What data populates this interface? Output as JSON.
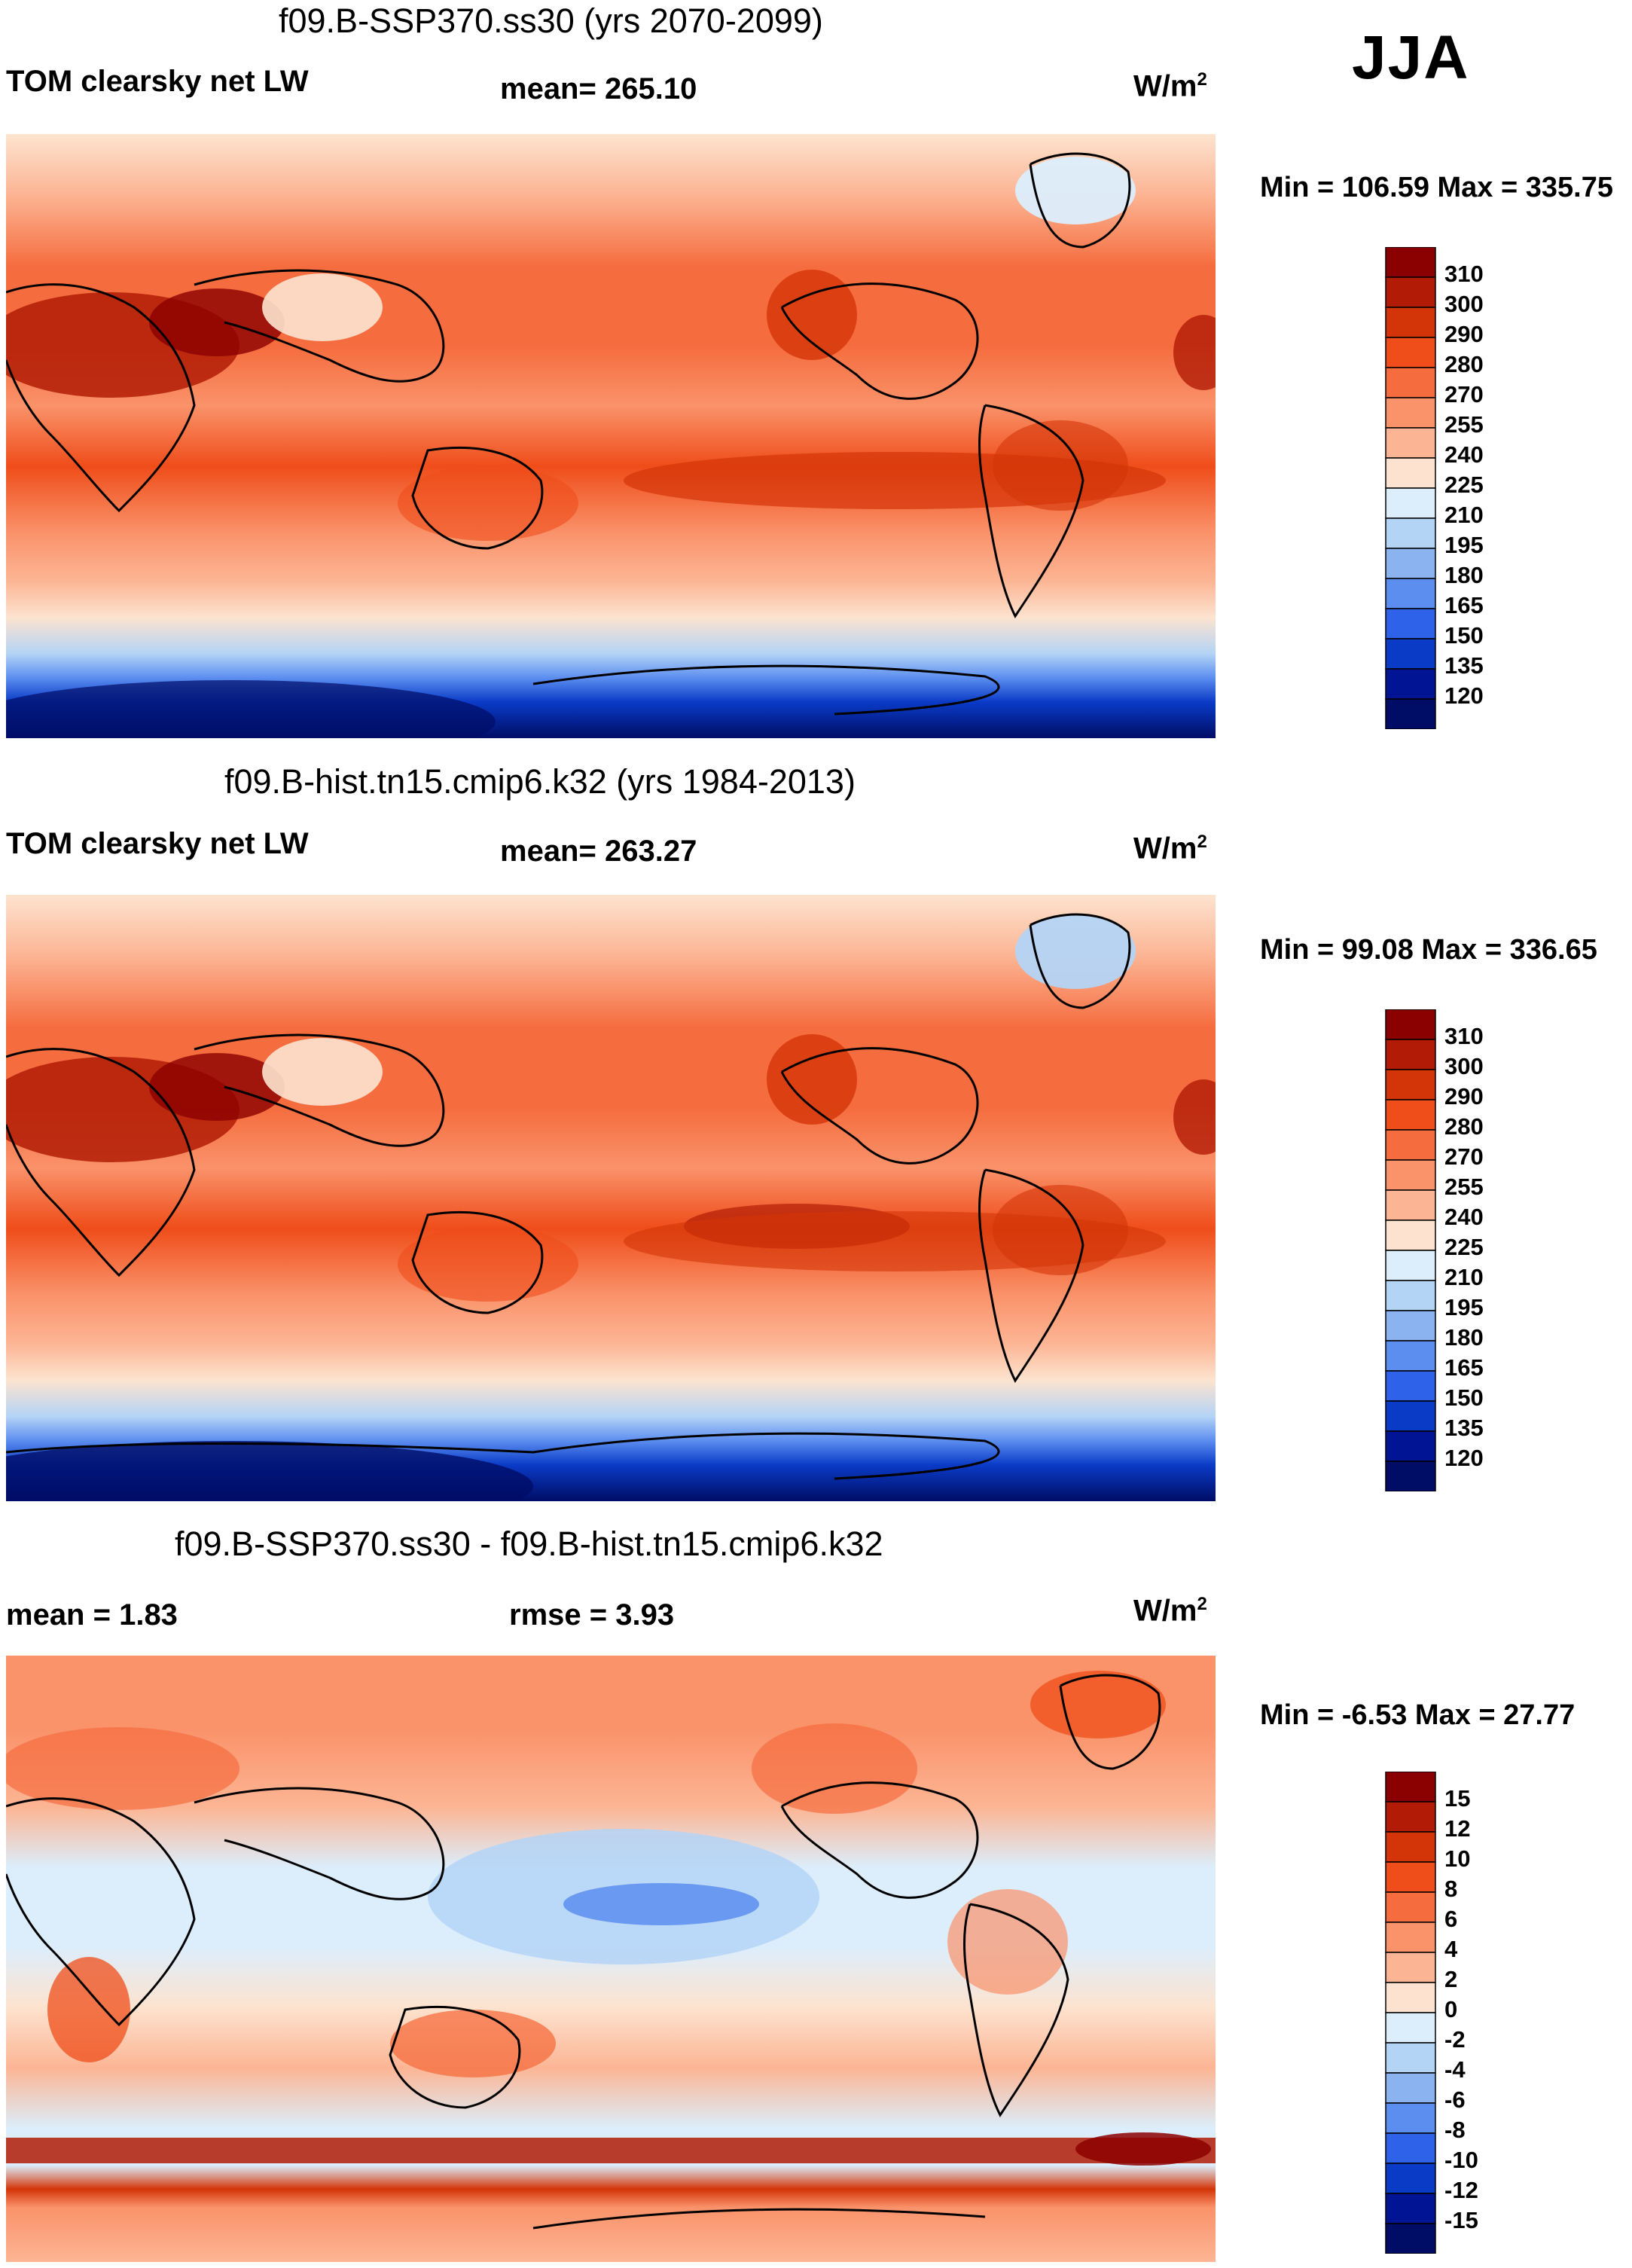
{
  "season": "JJA",
  "panels": [
    {
      "id": "ssp370",
      "title": "f09.B-SSP370.ss30 (yrs 2070-2099)",
      "left_label": "TOM clearsky net LW",
      "stat_label": "mean= 265.10",
      "units": "W/m",
      "units_sup": "2",
      "minmax": "Min = 106.59 Max = 335.75"
    },
    {
      "id": "hist",
      "title": "f09.B-hist.tn15.cmip6.k32 (yrs 1984-2013)",
      "left_label": "TOM clearsky net LW",
      "stat_label": "mean= 263.27",
      "units": "W/m",
      "units_sup": "2",
      "minmax": "Min =  99.08 Max = 336.65"
    },
    {
      "id": "diff",
      "title": "f09.B-SSP370.ss30 - f09.B-hist.tn15.cmip6.k32",
      "left_label": "mean =   1.83",
      "stat_label": "rmse =   3.93",
      "units": "W/m",
      "units_sup": "2",
      "minmax": "Min =  -6.53 Max =  27.77"
    }
  ],
  "colorbars": {
    "absolute": {
      "levels": [
        "310",
        "300",
        "290",
        "280",
        "270",
        "255",
        "240",
        "225",
        "210",
        "195",
        "180",
        "165",
        "150",
        "135",
        "120"
      ],
      "colors": [
        "#8b0000",
        "#b21c06",
        "#d43508",
        "#ef4d1a",
        "#f56c3e",
        "#fa926a",
        "#fcb594",
        "#fde3cf",
        "#dceefc",
        "#b4d4f6",
        "#8ab3f0",
        "#5c8ef0",
        "#2e62e8",
        "#0a3bc7",
        "#001494",
        "#000d66"
      ]
    },
    "difference": {
      "levels": [
        "15",
        "12",
        "10",
        "8",
        "6",
        "4",
        "2",
        "0",
        "-2",
        "-4",
        "-6",
        "-8",
        "-10",
        "-12",
        "-15"
      ],
      "colors": [
        "#8b0000",
        "#b21c06",
        "#d43508",
        "#ef4d1a",
        "#f56c3e",
        "#fa926a",
        "#fcb594",
        "#fde3cf",
        "#dceefc",
        "#b4d4f6",
        "#8ab3f0",
        "#5c8ef0",
        "#2e62e8",
        "#0a3bc7",
        "#001494",
        "#000d66"
      ]
    }
  },
  "chart_data": [
    {
      "type": "heatmap",
      "title": "f09.B-SSP370.ss30 (yrs 2070-2099)",
      "variable": "TOM clearsky net LW",
      "units": "W/m2",
      "mean": 265.1,
      "min": 106.59,
      "max": 335.75,
      "contour_levels": [
        120,
        135,
        150,
        165,
        180,
        195,
        210,
        225,
        240,
        255,
        270,
        280,
        290,
        300,
        310
      ],
      "season": "JJA"
    },
    {
      "type": "heatmap",
      "title": "f09.B-hist.tn15.cmip6.k32 (yrs 1984-2013)",
      "variable": "TOM clearsky net LW",
      "units": "W/m2",
      "mean": 263.27,
      "min": 99.08,
      "max": 336.65,
      "contour_levels": [
        120,
        135,
        150,
        165,
        180,
        195,
        210,
        225,
        240,
        255,
        270,
        280,
        290,
        300,
        310
      ],
      "season": "JJA"
    },
    {
      "type": "heatmap",
      "title": "f09.B-SSP370.ss30 - f09.B-hist.tn15.cmip6.k32",
      "variable": "difference",
      "units": "W/m2",
      "mean": 1.83,
      "rmse": 3.93,
      "min": -6.53,
      "max": 27.77,
      "contour_levels": [
        -15,
        -12,
        -10,
        -8,
        -6,
        -4,
        -2,
        0,
        2,
        4,
        6,
        8,
        10,
        12,
        15
      ],
      "season": "JJA"
    }
  ]
}
